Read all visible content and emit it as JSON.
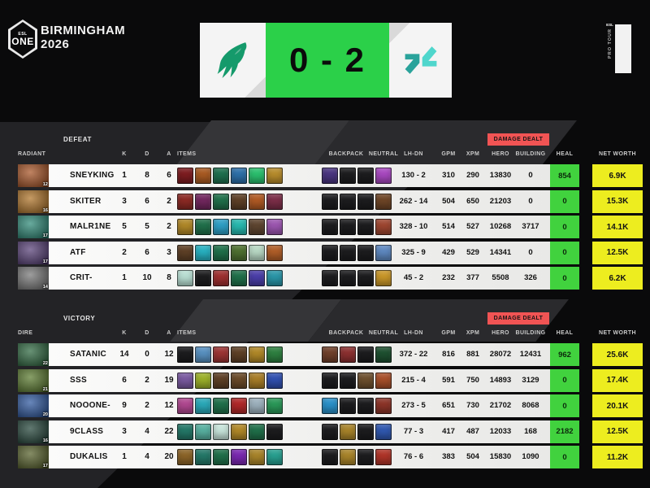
{
  "event": {
    "badge_small": "ESL",
    "badge_big": "ONE",
    "city": "BIRMINGHAM",
    "year": "2026",
    "esl_mark": "ESL",
    "pro_tour": "PRO TOUR"
  },
  "score_panel": {
    "score": "0 - 2",
    "left_team": "Team Falcons",
    "right_team": "Tundra Esports"
  },
  "colors": {
    "heal_bg": "#41d23e",
    "net_worth_bg": "#eded1f",
    "damage_badge_bg": "#f15454",
    "score_bg": "#2bd049",
    "falcons_green": "#159a6b",
    "tundra_teal_light": "#4fd6cc",
    "tundra_teal_dark": "#2aa39b"
  },
  "column_headers": {
    "k": "K",
    "d": "D",
    "a": "A",
    "items": "ITEMS",
    "backpack": "BACKPACK",
    "neutral": "NEUTRAL",
    "lhdn": "LH-DN",
    "gpm": "GPM",
    "xpm": "XPM",
    "hero": "HERO",
    "building": "BUILDING",
    "heal": "HEAL",
    "net_worth": "NET WORTH",
    "damage_dealt": "DAMAGE DEALT"
  },
  "tables": [
    {
      "result": "DEFEAT",
      "side": "RADIANT",
      "players": [
        {
          "name": "SNEYKING",
          "level": "12",
          "portrait": "#a85426",
          "k": "1",
          "d": "8",
          "a": "6",
          "items": [
            "#7d1c20",
            "#a85a22",
            "#1e6f4e",
            "#2d6fa8",
            "#2bbf6e",
            "#b78c2c"
          ],
          "backpack": [
            "#4a3580",
            "#1c1c1e",
            "#1c1c1e"
          ],
          "neutral": [
            "#a848c0"
          ],
          "lhdn": "130 - 2",
          "gpm": "310",
          "xpm": "290",
          "hero_dmg": "13830",
          "building_dmg": "0",
          "heal": "854",
          "net_worth": "6.9K"
        },
        {
          "name": "SKITER",
          "level": "16",
          "portrait": "#b07428",
          "k": "3",
          "d": "6",
          "a": "2",
          "items": [
            "#8c2a24",
            "#72275e",
            "#20704a",
            "#5e4026",
            "#b05a24",
            "#7c2e48"
          ],
          "backpack": [
            "#1c1c1e",
            "#1c1c1e",
            "#1c1c1e"
          ],
          "neutral": [
            "#6e4526"
          ],
          "lhdn": "262 - 14",
          "gpm": "504",
          "xpm": "650",
          "hero_dmg": "21203",
          "building_dmg": "0",
          "heal": "0",
          "net_worth": "15.3K"
        },
        {
          "name": "MALR1NE",
          "level": "17",
          "portrait": "#2e8a78",
          "k": "5",
          "d": "5",
          "a": "2",
          "items": [
            "#b08828",
            "#20704a",
            "#2e9ec4",
            "#27b8ae",
            "#5e4530",
            "#9c56b0"
          ],
          "backpack": [
            "#1c1c1e",
            "#1c1c1e",
            "#1c1c1e"
          ],
          "neutral": [
            "#9e4630"
          ],
          "lhdn": "328 - 10",
          "gpm": "514",
          "xpm": "527",
          "hero_dmg": "10268",
          "building_dmg": "3717",
          "heal": "0",
          "net_worth": "14.1K"
        },
        {
          "name": "ATF",
          "level": "17",
          "portrait": "#584078",
          "k": "2",
          "d": "6",
          "a": "3",
          "items": [
            "#5e4026",
            "#27b0c0",
            "#20704a",
            "#4e7030",
            "#b8d8c4",
            "#b05e28"
          ],
          "backpack": [
            "#1c1c1e",
            "#1c1c1e",
            "#1c1c1e"
          ],
          "neutral": [
            "#5e88c0"
          ],
          "lhdn": "325 - 9",
          "gpm": "429",
          "xpm": "529",
          "hero_dmg": "14341",
          "building_dmg": "0",
          "heal": "0",
          "net_worth": "12.5K"
        },
        {
          "name": "CRIT-",
          "level": "14",
          "portrait": "#787878",
          "k": "1",
          "d": "10",
          "a": "8",
          "items": [
            "#b8ded2",
            "#1c1c1e",
            "#9e3030",
            "#20704a",
            "#4a3ea8",
            "#2a96a8"
          ],
          "backpack": [
            "#1c1c1e",
            "#1c1c1e",
            "#1c1c1e"
          ],
          "neutral": [
            "#c89628"
          ],
          "lhdn": "45 - 2",
          "gpm": "232",
          "xpm": "377",
          "hero_dmg": "5508",
          "building_dmg": "326",
          "heal": "0",
          "net_worth": "6.2K"
        }
      ]
    },
    {
      "result": "VICTORY",
      "side": "DIRE",
      "players": [
        {
          "name": "SATANIC",
          "level": "22",
          "portrait": "#2e6840",
          "k": "14",
          "d": "0",
          "a": "12",
          "items": [
            "#1c1c1e",
            "#5890c0",
            "#9c3434",
            "#5e4026",
            "#b08828",
            "#2e8040"
          ],
          "backpack": [
            "#70402a",
            "#8c3030",
            "#1c1c1e"
          ],
          "neutral": [
            "#1e5030"
          ],
          "lhdn": "372 - 22",
          "gpm": "816",
          "xpm": "881",
          "hero_dmg": "28072",
          "building_dmg": "12431",
          "heal": "962",
          "net_worth": "25.6K"
        },
        {
          "name": "SSS",
          "level": "21",
          "portrait": "#5a7a2e",
          "k": "6",
          "d": "2",
          "a": "19",
          "items": [
            "#7a5aa0",
            "#9cb02a",
            "#5e4026",
            "#6a4a28",
            "#a87e28",
            "#3050b0"
          ],
          "backpack": [
            "#1c1c1e",
            "#1c1c1e",
            "#6e502e"
          ],
          "neutral": [
            "#a8502a"
          ],
          "lhdn": "215 - 4",
          "gpm": "591",
          "xpm": "750",
          "hero_dmg": "14893",
          "building_dmg": "3129",
          "heal": "0",
          "net_worth": "17.4K"
        },
        {
          "name": "NOOONE-",
          "level": "20",
          "portrait": "#2e58a0",
          "k": "9",
          "d": "2",
          "a": "12",
          "items": [
            "#b04890",
            "#2aa8b8",
            "#20704a",
            "#b02828",
            "#9cb0bc",
            "#2a9858"
          ],
          "backpack": [
            "#2a90c8",
            "#1c1c1e",
            "#1c1c1e"
          ],
          "neutral": [
            "#8c3428"
          ],
          "lhdn": "273 - 5",
          "gpm": "651",
          "xpm": "730",
          "hero_dmg": "21702",
          "building_dmg": "8068",
          "heal": "0",
          "net_worth": "20.1K"
        },
        {
          "name": "9CLASS",
          "level": "16",
          "portrait": "#24453a",
          "k": "3",
          "d": "4",
          "a": "22",
          "items": [
            "#247868",
            "#58b0a0",
            "#c8e4da",
            "#b08828",
            "#20704a",
            "#1c1c1e"
          ],
          "backpack": [
            "#1c1c1e",
            "#a8842a",
            "#1c1c1e"
          ],
          "neutral": [
            "#3058b0"
          ],
          "lhdn": "77 - 3",
          "gpm": "417",
          "xpm": "487",
          "hero_dmg": "12033",
          "building_dmg": "168",
          "heal": "2182",
          "net_worth": "12.5K"
        },
        {
          "name": "DUKALIS",
          "level": "17",
          "portrait": "#56602a",
          "k": "1",
          "d": "4",
          "a": "20",
          "items": [
            "#8c6428",
            "#247868",
            "#20704a",
            "#7a28b0",
            "#a8842a",
            "#28a090"
          ],
          "backpack": [
            "#1c1c1e",
            "#a8842a",
            "#1c1c1e"
          ],
          "neutral": [
            "#b03428"
          ],
          "lhdn": "76 - 6",
          "gpm": "383",
          "xpm": "504",
          "hero_dmg": "15830",
          "building_dmg": "1090",
          "heal": "0",
          "net_worth": "11.2K"
        }
      ]
    }
  ]
}
